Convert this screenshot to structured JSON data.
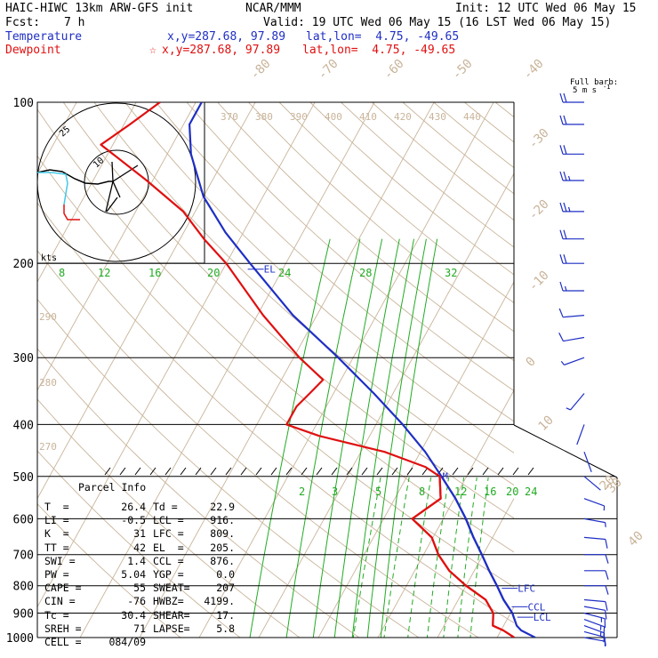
{
  "header": {
    "model": "HAIC-HIWC 13km ARW-GFS init",
    "org": "NCAR/MMM",
    "init": "Init: 12 UTC Wed 06 May 15",
    "fcst_label": "Fcst:",
    "fcst_value": "7 h",
    "valid": "Valid: 19 UTC Wed 06 May 15 (16 LST Wed 06 May 15)",
    "temp_label": "Temperature",
    "temp_xy": "x,y=287.68, 97.89",
    "temp_latlon": "lat,lon=  4.75, -49.65",
    "dew_label": "Dewpoint",
    "dew_star": "☆",
    "dew_xy": "x,y=287.68, 97.89",
    "dew_latlon": "lat,lon=  4.75, -49.65"
  },
  "colors": {
    "temperature": "#1f2fc4",
    "dewpoint": "#e01010",
    "mixing_ratio": "#22aa22",
    "isotherm_adiabat": "#c9b49a",
    "isobar": "#000000",
    "wind": "#1f2fc4"
  },
  "barb_legend": {
    "line1": "Full barb:",
    "line2": "5 m s",
    "exp": "-1"
  },
  "hodograph": {
    "axis_label": "kts",
    "ring_outer": "25",
    "ring_inner": "10"
  },
  "parcel_info": {
    "title": "Parcel Info",
    "rows": [
      {
        "l1": "T  =",
        "v1": "26.4",
        "l2": "Td =",
        "v2": "22.9"
      },
      {
        "l1": "LI =",
        "v1": "-0.5",
        "l2": "LCL =",
        "v2": "916."
      },
      {
        "l1": "K  =",
        "v1": "31",
        "l2": "LFC =",
        "v2": "809."
      },
      {
        "l1": "TT =",
        "v1": "42",
        "l2": "EL  =",
        "v2": "205."
      },
      {
        "l1": "SWI =",
        "v1": "1.4",
        "l2": "CCL =",
        "v2": "876."
      },
      {
        "l1": "PW =",
        "v1": "5.04",
        "l2": "YGP =",
        "v2": "0.0"
      },
      {
        "l1": "CAPE =",
        "v1": "55",
        "l2": "SWEAT=",
        "v2": "207"
      },
      {
        "l1": "CIN =",
        "v1": "-76",
        "l2": "HWBZ=",
        "v2": "4199."
      },
      {
        "l1": "Tc =",
        "v1": "30.4",
        "l2": "SHEAR=",
        "v2": "17."
      },
      {
        "l1": "SREH =",
        "v1": "71",
        "l2": "LAPSE=",
        "v2": "5.8"
      },
      {
        "l1": "CELL =",
        "v1": "084/09",
        "l2": "",
        "v2": ""
      }
    ]
  },
  "chart_data": {
    "type": "line",
    "title": "",
    "y_axis": "pressure (hPa)",
    "pressure_ticks": [
      "100",
      "200",
      "300",
      "400",
      "500",
      "600",
      "700",
      "800",
      "900",
      "1000"
    ],
    "isotherm_labels": [
      "-80",
      "-70",
      "-60",
      "-50",
      "-40",
      "-30",
      "-20",
      "-10",
      "0",
      "10",
      "20",
      "30",
      "40"
    ],
    "theta_labels": [
      "370",
      "380",
      "390",
      "400",
      "410",
      "420",
      "430",
      "440"
    ],
    "theta_labels_left": [
      "290",
      "280",
      "270"
    ],
    "mixing_ratio_labels_top": [
      "8",
      "12",
      "16",
      "20",
      "24",
      "28",
      "32"
    ],
    "mixing_ratio_labels_low": [
      "2",
      "3",
      "5",
      "8",
      "12",
      "16",
      "20",
      "24"
    ],
    "level_markers": [
      {
        "name": "EL",
        "p": 205
      },
      {
        "name": "LFC",
        "p": 809
      },
      {
        "name": "CCL",
        "p": 876
      },
      {
        "name": "LCL",
        "p": 916
      },
      {
        "name": "M",
        "p": 498
      }
    ],
    "series": [
      {
        "name": "Temperature",
        "points": [
          [
            1000,
            26.4
          ],
          [
            970,
            23.4
          ],
          [
            950,
            22.2
          ],
          [
            900,
            20.3
          ],
          [
            850,
            17.6
          ],
          [
            800,
            15.2
          ],
          [
            750,
            12.5
          ],
          [
            700,
            9.8
          ],
          [
            650,
            6.8
          ],
          [
            600,
            3.8
          ],
          [
            550,
            0.2
          ],
          [
            500,
            -4.2
          ],
          [
            450,
            -9.2
          ],
          [
            400,
            -15.5
          ],
          [
            350,
            -23.2
          ],
          [
            300,
            -32.5
          ],
          [
            250,
            -44.0
          ],
          [
            200,
            -56.0
          ],
          [
            175,
            -63.0
          ],
          [
            150,
            -70.0
          ],
          [
            125,
            -76.0
          ],
          [
            110,
            -79.0
          ],
          [
            100,
            -79.0
          ]
        ]
      },
      {
        "name": "Dewpoint",
        "points": [
          [
            1000,
            22.9
          ],
          [
            970,
            20.4
          ],
          [
            950,
            18.2
          ],
          [
            900,
            17.1
          ],
          [
            850,
            14.6
          ],
          [
            800,
            10.0
          ],
          [
            750,
            5.8
          ],
          [
            700,
            2.5
          ],
          [
            650,
            -0.2
          ],
          [
            600,
            -5.2
          ],
          [
            550,
            -2.3
          ],
          [
            500,
            -4.5
          ],
          [
            480,
            -7.8
          ],
          [
            450,
            -16.0
          ],
          [
            420,
            -28.5
          ],
          [
            400,
            -35.0
          ],
          [
            370,
            -35.0
          ],
          [
            350,
            -34.0
          ],
          [
            330,
            -33.0
          ],
          [
            300,
            -39.0
          ],
          [
            250,
            -49.0
          ],
          [
            200,
            -60.0
          ],
          [
            180,
            -66.0
          ],
          [
            160,
            -72.0
          ],
          [
            140,
            -81.0
          ],
          [
            120,
            -92.0
          ],
          [
            110,
            -89.0
          ],
          [
            100,
            -86.0
          ]
        ]
      }
    ],
    "wind_barbs": [
      {
        "p": 1000,
        "dir": 100,
        "kt": 9
      },
      {
        "p": 975,
        "dir": 105,
        "kt": 12
      },
      {
        "p": 950,
        "dir": 110,
        "kt": 15
      },
      {
        "p": 925,
        "dir": 110,
        "kt": 16
      },
      {
        "p": 900,
        "dir": 105,
        "kt": 15
      },
      {
        "p": 875,
        "dir": 100,
        "kt": 14
      },
      {
        "p": 850,
        "dir": 95,
        "kt": 12
      },
      {
        "p": 800,
        "dir": 90,
        "kt": 10
      },
      {
        "p": 750,
        "dir": 90,
        "kt": 10
      },
      {
        "p": 700,
        "dir": 90,
        "kt": 10
      },
      {
        "p": 650,
        "dir": 95,
        "kt": 10
      },
      {
        "p": 600,
        "dir": 100,
        "kt": 8
      },
      {
        "p": 550,
        "dir": 110,
        "kt": 6
      },
      {
        "p": 500,
        "dir": 130,
        "kt": 4
      },
      {
        "p": 450,
        "dir": 160,
        "kt": 3
      },
      {
        "p": 400,
        "dir": 200,
        "kt": 4
      },
      {
        "p": 350,
        "dir": 220,
        "kt": 6
      },
      {
        "p": 300,
        "dir": 250,
        "kt": 8
      },
      {
        "p": 275,
        "dir": 260,
        "kt": 10
      },
      {
        "p": 250,
        "dir": 265,
        "kt": 14
      },
      {
        "p": 225,
        "dir": 270,
        "kt": 18
      },
      {
        "p": 200,
        "dir": 270,
        "kt": 22
      },
      {
        "p": 180,
        "dir": 270,
        "kt": 24
      },
      {
        "p": 160,
        "dir": 270,
        "kt": 26
      },
      {
        "p": 140,
        "dir": 270,
        "kt": 26
      },
      {
        "p": 125,
        "dir": 270,
        "kt": 24
      },
      {
        "p": 110,
        "dir": 270,
        "kt": 22
      },
      {
        "p": 100,
        "dir": 270,
        "kt": 20
      }
    ]
  }
}
